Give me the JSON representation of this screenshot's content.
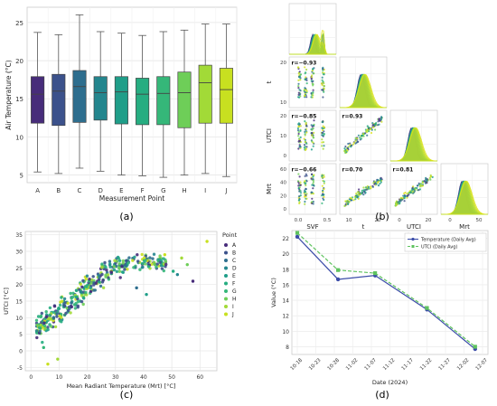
{
  "panels": {
    "a": "(a)",
    "b": "(b)",
    "c": "(c)",
    "d": "(d)"
  },
  "chart_data": [
    {
      "id": "a",
      "type": "box",
      "xlabel": "Measurement Point",
      "ylabel": "Air Temperature (°C)",
      "ylim": [
        4,
        27
      ],
      "yticks": [
        5,
        10,
        15,
        20,
        25
      ],
      "grid": true,
      "categories": [
        "A",
        "B",
        "C",
        "D",
        "E",
        "F",
        "G",
        "H",
        "I",
        "J"
      ],
      "colors": [
        "#472c7a",
        "#3b518b",
        "#2e6e8e",
        "#24868e",
        "#1f9e89",
        "#26ad81",
        "#35b779",
        "#6ece58",
        "#a2da37",
        "#c8e020"
      ],
      "boxes": [
        {
          "whislo": 5.4,
          "q1": 11.8,
          "med": 15.6,
          "q3": 17.9,
          "whishi": 23.7
        },
        {
          "whislo": 5.2,
          "q1": 11.5,
          "med": 16.0,
          "q3": 18.2,
          "whishi": 23.4
        },
        {
          "whislo": 5.9,
          "q1": 11.9,
          "med": 16.6,
          "q3": 18.7,
          "whishi": 26.0
        },
        {
          "whislo": 5.5,
          "q1": 12.2,
          "med": 15.8,
          "q3": 17.9,
          "whishi": 23.8
        },
        {
          "whislo": 5.0,
          "q1": 11.7,
          "med": 15.9,
          "q3": 17.9,
          "whishi": 23.6
        },
        {
          "whislo": 4.9,
          "q1": 11.6,
          "med": 15.6,
          "q3": 17.7,
          "whishi": 23.3
        },
        {
          "whislo": 4.7,
          "q1": 11.6,
          "med": 15.7,
          "q3": 17.9,
          "whishi": 23.8
        },
        {
          "whislo": 5.0,
          "q1": 11.2,
          "med": 15.8,
          "q3": 18.5,
          "whishi": 24.0
        },
        {
          "whislo": 5.2,
          "q1": 11.8,
          "med": 17.1,
          "q3": 19.4,
          "whishi": 24.8
        },
        {
          "whislo": 4.8,
          "q1": 11.8,
          "med": 16.2,
          "q3": 19.0,
          "whishi": 24.8
        }
      ]
    },
    {
      "id": "b",
      "type": "pairplot",
      "variables": [
        "SVF",
        "t",
        "UTCI",
        "Mrt"
      ],
      "correlations": [
        {
          "row": "t",
          "col": "SVF",
          "label": "r=−0.93"
        },
        {
          "row": "UTCI",
          "col": "SVF",
          "label": "r=−0.85"
        },
        {
          "row": "UTCI",
          "col": "t",
          "label": "r=0.93"
        },
        {
          "row": "Mrt",
          "col": "SVF",
          "label": "r=−0.66"
        },
        {
          "row": "Mrt",
          "col": "t",
          "label": "r=0.70"
        },
        {
          "row": "Mrt",
          "col": "UTCI",
          "label": "r=0.81"
        }
      ],
      "yticks": {
        "t": [
          "20",
          "10"
        ],
        "UTCI": [
          "20",
          "10",
          "0"
        ],
        "Mrt": [
          "60",
          "40",
          "20",
          "0"
        ]
      },
      "xticks": {
        "SVF": [
          "0.0",
          "0.5"
        ],
        "t": [
          "10",
          "20"
        ],
        "UTCI": [
          "0",
          "20"
        ],
        "Mrt": [
          "0",
          "50"
        ]
      }
    },
    {
      "id": "c",
      "type": "scatter",
      "xlabel": "Mean Radiant Temperature (Mrt) [°C]",
      "ylabel": "UTCI [°C]",
      "xlim": [
        -2,
        66
      ],
      "ylim": [
        -6,
        36
      ],
      "xticks": [
        0,
        10,
        20,
        30,
        40,
        50,
        60
      ],
      "yticks": [
        -5,
        0,
        5,
        10,
        15,
        20,
        25,
        30,
        35
      ],
      "grid": true,
      "legend": {
        "title": "Point",
        "placement": "upper right outside"
      },
      "series": [
        {
          "name": "A",
          "color": "#472c7a"
        },
        {
          "name": "B",
          "color": "#3b518b"
        },
        {
          "name": "C",
          "color": "#2e6e8e"
        },
        {
          "name": "D",
          "color": "#24868e"
        },
        {
          "name": "E",
          "color": "#1f9e89"
        },
        {
          "name": "F",
          "color": "#26ad81"
        },
        {
          "name": "G",
          "color": "#35b779"
        },
        {
          "name": "H",
          "color": "#6ece58"
        },
        {
          "name": "I",
          "color": "#a2da37"
        },
        {
          "name": "J",
          "color": "#c8e020"
        }
      ],
      "trend": {
        "slope": 0.72,
        "intercept": 4.5,
        "xrange": [
          2,
          48
        ],
        "spread": 4.5
      },
      "outliers": [
        {
          "x": 62.5,
          "y": 33.0,
          "s": 9
        },
        {
          "x": 47.5,
          "y": 29.0,
          "s": 9
        },
        {
          "x": 53.5,
          "y": 28.0,
          "s": 8
        },
        {
          "x": 55.5,
          "y": 26.0,
          "s": 7
        },
        {
          "x": 57.5,
          "y": 21.0,
          "s": 0
        },
        {
          "x": 50.5,
          "y": 24.0,
          "s": 5
        },
        {
          "x": 52.0,
          "y": 23.0,
          "s": 3
        },
        {
          "x": 41.0,
          "y": 17.0,
          "s": 4
        },
        {
          "x": 37.5,
          "y": 19.0,
          "s": 2
        },
        {
          "x": 6.0,
          "y": -4.0,
          "s": 9
        },
        {
          "x": 9.5,
          "y": -2.5,
          "s": 8
        },
        {
          "x": 4.5,
          "y": 1.0,
          "s": 6
        }
      ]
    },
    {
      "id": "d",
      "type": "line",
      "xlabel": "Date (2024)",
      "ylabel": "Value (°C)",
      "ylim": [
        7,
        23
      ],
      "yticks": [
        8,
        10,
        12,
        14,
        16,
        18,
        20,
        22
      ],
      "xticklabels": [
        "10-18",
        "10-23",
        "10-28",
        "11-02",
        "11-07",
        "11-12",
        "11-17",
        "11-22",
        "11-27",
        "12-02",
        "12-07"
      ],
      "grid": true,
      "legend": {
        "placement": "upper right"
      },
      "series": [
        {
          "name": "Temperature (Daily Avg)",
          "color": "#3b4ca8",
          "dash": false,
          "marker": "circle",
          "x": [
            "10-18",
            "10-29",
            "11-08",
            "11-22",
            "12-05"
          ],
          "y": [
            22.2,
            16.7,
            17.2,
            12.8,
            7.7
          ]
        },
        {
          "name": "UTCI (Daily Avg)",
          "color": "#5fc35f",
          "dash": true,
          "marker": "square",
          "x": [
            "10-18",
            "10-29",
            "11-08",
            "11-22",
            "12-05"
          ],
          "y": [
            22.7,
            17.9,
            17.5,
            13.0,
            8.0
          ]
        }
      ]
    }
  ]
}
